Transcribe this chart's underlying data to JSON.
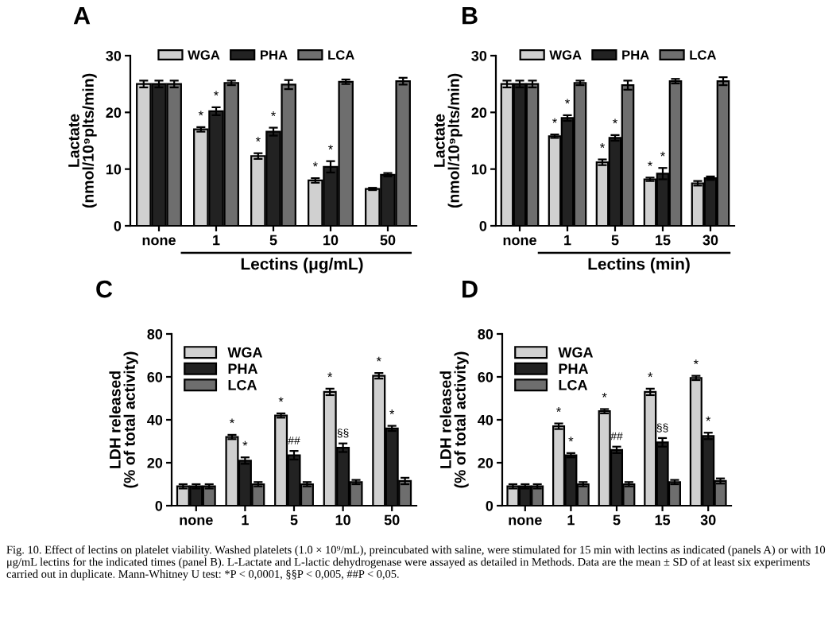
{
  "chart_data": [
    {
      "type": "bar",
      "title": "A",
      "ylabel": "Lactate\n(nmol/10⁹plts/min)",
      "xlabel": "Lectins (μg/mL)",
      "categories": [
        "none",
        "1",
        "5",
        "10",
        "50"
      ],
      "ylim": [
        0,
        30
      ],
      "yticks": [
        0,
        10,
        20,
        30
      ],
      "legend": "top",
      "grid": false,
      "series": [
        {
          "name": "WGA",
          "color": "#d0d0d0",
          "values": [
            25,
            17,
            12.3,
            8,
            6.5
          ],
          "errors": [
            0.6,
            0.4,
            0.5,
            0.4,
            0.2
          ]
        },
        {
          "name": "PHA",
          "color": "#222222",
          "values": [
            25,
            20.2,
            16.6,
            10.4,
            9
          ],
          "errors": [
            0.6,
            0.7,
            0.7,
            1,
            0.3
          ]
        },
        {
          "name": "LCA",
          "color": "#6e6e6e",
          "values": [
            25,
            25.2,
            24.9,
            25.4,
            25.5
          ],
          "errors": [
            0.6,
            0.4,
            0.8,
            0.4,
            0.6
          ]
        }
      ],
      "annotations": [
        {
          "text": "*",
          "x": "1",
          "y": 17
        },
        {
          "text": "*",
          "x": "1",
          "y": 20.2
        },
        {
          "text": "*",
          "x": "5",
          "y": 12.3
        },
        {
          "text": "*",
          "x": "5",
          "y": 16.6
        },
        {
          "text": "*",
          "x": "10",
          "y": 8
        },
        {
          "text": "*",
          "x": "10",
          "y": 10.4
        }
      ]
    },
    {
      "type": "bar",
      "title": "B",
      "ylabel": "Lactate\n(nmol/10⁹plts/min)",
      "xlabel": "Lectins (min)",
      "categories": [
        "none",
        "1",
        "5",
        "15",
        "30"
      ],
      "ylim": [
        0,
        30
      ],
      "yticks": [
        0,
        10,
        20,
        30
      ],
      "legend": "top",
      "grid": false,
      "series": [
        {
          "name": "WGA",
          "color": "#d0d0d0",
          "values": [
            25,
            15.8,
            11.2,
            8.2,
            7.5
          ],
          "errors": [
            0.6,
            0.3,
            0.5,
            0.3,
            0.4
          ]
        },
        {
          "name": "PHA",
          "color": "#222222",
          "values": [
            25,
            19,
            15.5,
            9.2,
            8.4
          ],
          "errors": [
            0.6,
            0.5,
            0.5,
            1,
            0.3
          ]
        },
        {
          "name": "LCA",
          "color": "#6e6e6e",
          "values": [
            25,
            25.2,
            24.8,
            25.5,
            25.5
          ],
          "errors": [
            0.6,
            0.4,
            0.8,
            0.4,
            0.7
          ]
        }
      ],
      "annotations": [
        {
          "text": "*",
          "x": "1",
          "y": 15.8
        },
        {
          "text": "*",
          "x": "1",
          "y": 19
        },
        {
          "text": "*",
          "x": "5",
          "y": 11.2
        },
        {
          "text": "*",
          "x": "5",
          "y": 15.5
        },
        {
          "text": "*",
          "x": "15",
          "y": 8.2
        },
        {
          "text": "*",
          "x": "15",
          "y": 9.2
        }
      ]
    },
    {
      "type": "bar",
      "title": "C",
      "ylabel": "LDH released\n(% of total activity)",
      "categories": [
        "none",
        "1",
        "5",
        "10",
        "50"
      ],
      "ylim": [
        0,
        80
      ],
      "yticks": [
        0,
        20,
        40,
        60,
        80
      ],
      "legend": "top left",
      "grid": false,
      "series": [
        {
          "name": "WGA",
          "color": "#d0d0d0",
          "values": [
            9,
            32,
            42,
            53,
            60.5
          ],
          "errors": [
            1,
            1,
            1,
            1.5,
            1.3
          ]
        },
        {
          "name": "PHA",
          "color": "#222222",
          "values": [
            9,
            21,
            23.5,
            27,
            36
          ],
          "errors": [
            1,
            1.5,
            2,
            2,
            1.2
          ]
        },
        {
          "name": "LCA",
          "color": "#6e6e6e",
          "values": [
            9,
            10,
            10,
            11,
            11.5
          ],
          "errors": [
            1,
            1,
            1,
            1,
            1.5
          ]
        }
      ],
      "annotations": [
        {
          "text": "*",
          "x": "1",
          "y": 32
        },
        {
          "text": "*",
          "x": "1",
          "y": 21
        },
        {
          "text": "*",
          "x": "5",
          "y": 42
        },
        {
          "text": "##",
          "x": "5",
          "y": 23.5
        },
        {
          "text": "*",
          "x": "10",
          "y": 53
        },
        {
          "text": "§§",
          "x": "10",
          "y": 27
        },
        {
          "text": "*",
          "x": "50",
          "y": 60.5
        },
        {
          "text": "*",
          "x": "50",
          "y": 36
        }
      ]
    },
    {
      "type": "bar",
      "title": "D",
      "ylabel": "LDH released\n(% of total activity)",
      "categories": [
        "none",
        "1",
        "5",
        "15",
        "30"
      ],
      "ylim": [
        0,
        80
      ],
      "yticks": [
        0,
        20,
        40,
        60,
        80
      ],
      "legend": "top left",
      "grid": false,
      "series": [
        {
          "name": "WGA",
          "color": "#d0d0d0",
          "values": [
            9,
            37,
            44,
            53,
            59.5
          ],
          "errors": [
            1,
            1.3,
            1,
            1.5,
            1
          ]
        },
        {
          "name": "PHA",
          "color": "#222222",
          "values": [
            9,
            23.5,
            26,
            29.5,
            32.5
          ],
          "errors": [
            1,
            1,
            1.5,
            2,
            1.5
          ]
        },
        {
          "name": "LCA",
          "color": "#6e6e6e",
          "values": [
            9,
            10,
            10,
            11,
            11.5
          ],
          "errors": [
            1,
            1,
            1,
            1,
            1.2
          ]
        }
      ],
      "annotations": [
        {
          "text": "*",
          "x": "1",
          "y": 37
        },
        {
          "text": "*",
          "x": "1",
          "y": 23.5
        },
        {
          "text": "*",
          "x": "5",
          "y": 44
        },
        {
          "text": "##",
          "x": "5",
          "y": 26
        },
        {
          "text": "*",
          "x": "15",
          "y": 53
        },
        {
          "text": "§§",
          "x": "15",
          "y": 29.5
        },
        {
          "text": "*",
          "x": "30",
          "y": 59.5
        },
        {
          "text": "*",
          "x": "30",
          "y": 32.5
        }
      ]
    },
    {
      "type": "other",
      "annotations": [
        "Fig. 10. Effect of lectins on platelet viability. Washed platelets (1.0 × 10⁹/mL), preincubated with saline, were stimulated for 15 min with lectins as indicated (panels A) or with 10 μg/mL lectins for the indicated times (panel B). L-Lactate and L-lactic dehydrogenase were assayed as detailed in Methods. Data are the mean ± SD of at least six experiments carried out in duplicate. Mann-Whitney U test: *P < 0,0001, §§P < 0,005, ##P < 0,05."
      ]
    }
  ]
}
